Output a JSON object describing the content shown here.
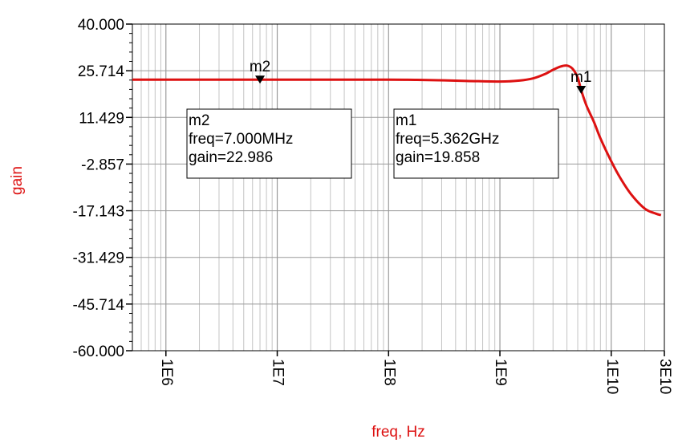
{
  "chart_data": {
    "type": "line",
    "xscale": "log",
    "xlim": [
      500000,
      30000000000
    ],
    "ylim": [
      -60.0,
      40.0
    ],
    "xlabel": "freq, Hz",
    "ylabel": "gain",
    "grid": true,
    "line_color": "#dd1111",
    "y_ticks": [
      40.0,
      25.714,
      11.429,
      -2.857,
      -17.143,
      -31.429,
      -45.714,
      -60.0
    ],
    "y_tick_labels": [
      "40.000",
      "25.714",
      "11.429",
      "-2.857",
      "-17.143",
      "-31.429",
      "-45.714",
      "-60.000"
    ],
    "x_ticks": [
      1000000,
      10000000,
      100000000,
      1000000000,
      10000000000,
      30000000000
    ],
    "x_tick_labels": [
      "1E6",
      "1E7",
      "1E8",
      "1E9",
      "1E10",
      "3E10"
    ],
    "series": [
      {
        "x": [
          500000,
          1000000,
          10000000,
          100000000,
          200000000,
          500000000,
          1000000000,
          1500000000,
          2000000000,
          2500000000,
          3000000000,
          3500000000,
          4000000000,
          4500000000,
          5000000000,
          5362000000,
          6000000000,
          7000000000,
          8000000000,
          10000000000,
          12000000000,
          15000000000,
          20000000000,
          25000000000,
          28000000000
        ],
        "y": [
          22.99,
          22.99,
          22.986,
          22.98,
          22.9,
          22.6,
          22.4,
          22.7,
          23.4,
          24.6,
          26.0,
          27.0,
          27.3,
          26.3,
          23.6,
          19.858,
          15.0,
          10.0,
          5.0,
          -2.0,
          -7.0,
          -12.0,
          -16.5,
          -18.0,
          -18.5
        ]
      }
    ],
    "markers": [
      {
        "name": "m2",
        "x": 7000000,
        "y": 22.986,
        "lines": [
          "m2",
          "freq=7.000MHz",
          "gain=22.986"
        ]
      },
      {
        "name": "m1",
        "x": 5362000000,
        "y": 19.858,
        "lines": [
          "m1",
          "freq=5.362GHz",
          "gain=19.858"
        ]
      }
    ]
  }
}
